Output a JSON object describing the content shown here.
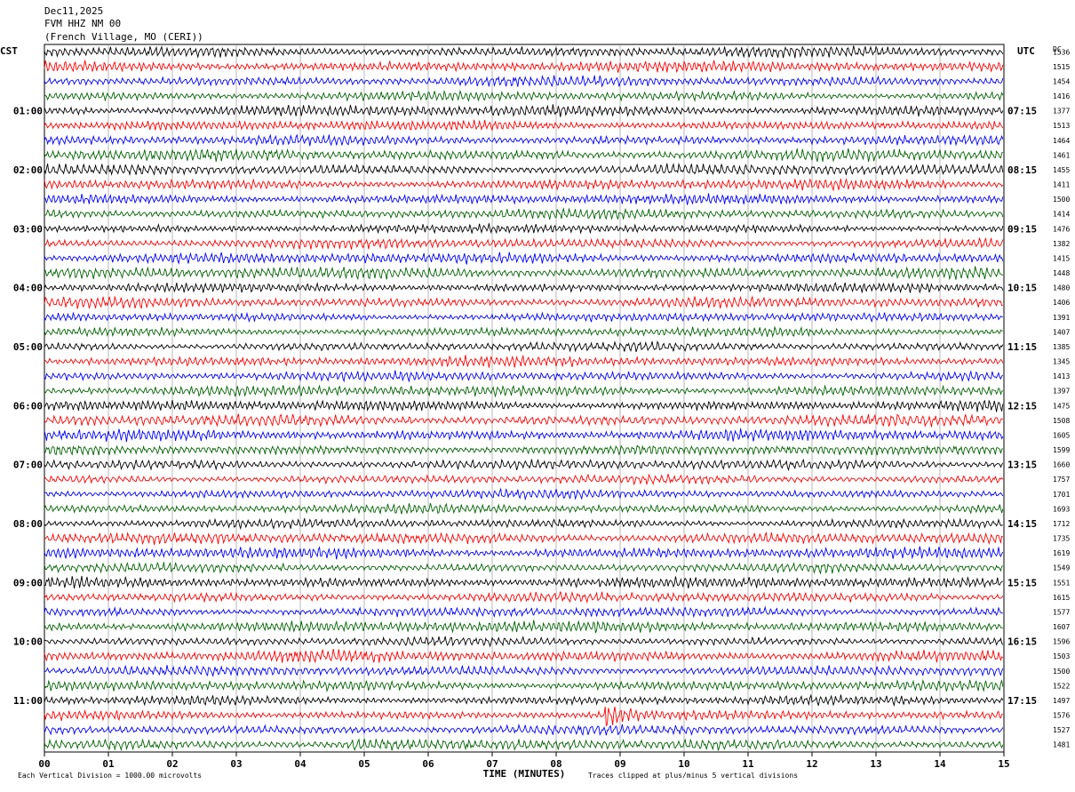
{
  "header": {
    "date": "Dec11,2025",
    "station": "FVM HHZ NM 00",
    "location": "(French Village, MO (CERI))"
  },
  "axis": {
    "left_label": "CST",
    "right_label": "UTC",
    "dc_label": "DC",
    "xlabel": "TIME (MINUTES)"
  },
  "footer": {
    "scale_note": "Each Vertical Division = 1000.00 microvolts",
    "clip_note": "Traces clipped at plus/minus 5 vertical divisions"
  },
  "colors": {
    "trace_cycle": [
      "#000000",
      "#ff0000",
      "#0000ff",
      "#006400"
    ],
    "grid": "#888888"
  },
  "chart_data": {
    "type": "line",
    "x_ticks": [
      "00",
      "01",
      "02",
      "03",
      "04",
      "05",
      "06",
      "07",
      "08",
      "09",
      "10",
      "11",
      "12",
      "13",
      "14",
      "15"
    ],
    "xlim": [
      0,
      15
    ],
    "cst_ticks": [
      "01:00",
      "02:00",
      "03:00",
      "04:00",
      "05:00",
      "06:00",
      "07:00",
      "08:00",
      "09:00",
      "10:00",
      "11:00"
    ],
    "utc_ticks": [
      "07:15",
      "08:15",
      "09:15",
      "10:15",
      "11:15",
      "12:15",
      "13:15",
      "14:15",
      "15:15",
      "16:15",
      "17:15"
    ],
    "dc_values": [
      1536,
      1515,
      1454,
      1416,
      1377,
      1513,
      1464,
      1461,
      1455,
      1411,
      1500,
      1414,
      1476,
      1382,
      1415,
      1448,
      1480,
      1406,
      1391,
      1407,
      1385,
      1345,
      1413,
      1397,
      1475,
      1508,
      1605,
      1599,
      1660,
      1757,
      1701,
      1693,
      1712,
      1735,
      1619,
      1549,
      1551,
      1615,
      1577,
      1607,
      1596,
      1503,
      1500,
      1522,
      1497,
      1576,
      1527,
      1481
    ],
    "events": [
      {
        "trace": 45,
        "minute": 8.8,
        "note": "large spike"
      },
      {
        "trace": 47,
        "minute": 4.85,
        "note": "small burst"
      }
    ]
  }
}
